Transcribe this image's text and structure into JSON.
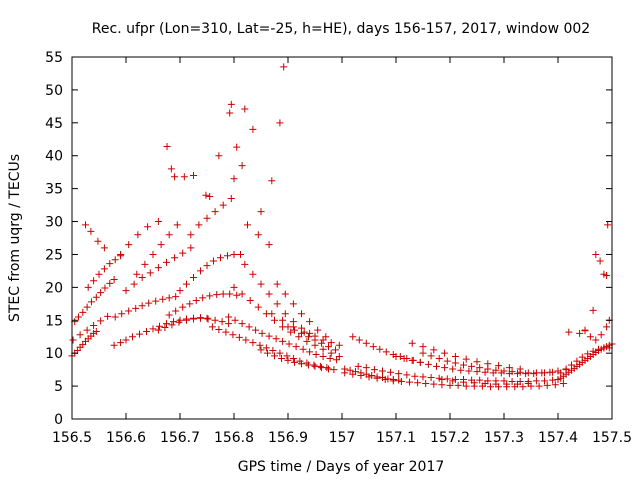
{
  "chart_data": {
    "type": "scatter",
    "title": "Rec. ufpr (Lon=310, Lat=-25, h=HE), days 156-157, 2017, window 002",
    "xlabel": "GPS time / Days of year 2017",
    "ylabel": "STEC from uqrg / TECUs",
    "xlim": [
      156.5,
      157.5
    ],
    "ylim": [
      0,
      55
    ],
    "xticks": [
      156.5,
      156.6,
      156.7,
      156.8,
      156.9,
      157,
      157.1,
      157.2,
      157.3,
      157.4,
      157.5
    ],
    "xtick_labels": [
      "156.5",
      "156.6",
      "156.7",
      "156.8",
      "156.9",
      "157",
      "157.1",
      "157.2",
      "157.3",
      "157.4",
      "157.5"
    ],
    "yticks": [
      0,
      5,
      10,
      15,
      20,
      25,
      30,
      35,
      40,
      45,
      50,
      55
    ],
    "ytick_labels": [
      "0",
      "5",
      "10",
      "15",
      "20",
      "25",
      "30",
      "35",
      "40",
      "45",
      "50",
      "55"
    ],
    "grid": false,
    "marker": "plus",
    "color": "#cc0000",
    "series": [
      {
        "x": [
          156.5,
          156.505,
          156.51,
          156.515,
          156.52,
          156.525,
          156.53,
          156.535,
          156.54,
          156.545,
          156.505,
          156.512,
          156.52,
          156.528,
          156.536,
          156.545,
          156.553,
          156.561,
          156.57,
          156.578,
          156.53,
          156.54,
          156.55,
          156.56,
          156.57,
          156.58,
          156.59,
          156.502,
          156.515,
          156.528,
          156.54,
          156.553,
          156.566,
          156.525,
          156.535,
          156.548,
          156.56,
          156.578,
          156.59,
          156.6,
          156.612,
          156.625,
          156.638,
          156.65,
          156.662,
          156.675,
          156.688,
          156.7,
          156.712,
          156.725,
          156.738,
          156.75,
          156.58,
          156.592,
          156.605,
          156.618,
          156.63,
          156.642,
          156.655,
          156.668,
          156.68,
          156.692,
          156.6,
          156.615,
          156.63,
          156.645,
          156.66,
          156.675,
          156.69,
          156.705,
          156.72,
          156.59,
          156.605,
          156.622,
          156.64,
          156.66,
          156.62,
          156.635,
          156.65,
          156.665,
          156.68,
          156.695,
          156.66,
          156.672,
          156.685,
          156.698,
          156.712,
          156.725,
          156.738,
          156.752,
          156.765,
          156.778,
          156.79,
          156.68,
          156.692,
          156.705,
          156.718,
          156.73,
          156.742,
          156.755,
          156.768,
          156.78,
          156.792,
          156.805,
          156.7,
          156.712,
          156.725,
          156.738,
          156.75,
          156.762,
          156.775,
          156.788,
          156.8,
          156.812,
          156.72,
          156.735,
          156.75,
          156.765,
          156.78,
          156.795,
          156.676,
          156.684,
          156.69,
          156.708,
          156.725,
          156.748,
          156.755,
          156.772,
          156.792,
          156.795,
          156.8,
          156.805,
          156.815,
          156.82,
          156.825,
          156.835,
          156.845,
          156.85,
          156.865,
          156.87,
          156.885,
          156.892,
          156.76,
          156.772,
          156.785,
          156.798,
          156.81,
          156.822,
          156.835,
          156.848,
          156.86,
          156.872,
          156.885,
          156.898,
          156.91,
          156.922,
          156.935,
          156.948,
          156.96,
          156.972,
          156.985,
          156.79,
          156.802,
          156.815,
          156.828,
          156.84,
          156.852,
          156.865,
          156.878,
          156.89,
          156.902,
          156.915,
          156.928,
          156.94,
          156.952,
          156.965,
          156.978,
          156.99,
          156.8,
          156.815,
          156.83,
          156.845,
          156.86,
          156.875,
          156.89,
          156.905,
          156.92,
          156.935,
          156.95,
          156.965,
          156.98,
          156.995,
          156.82,
          156.835,
          156.85,
          156.865,
          156.88,
          156.895,
          156.91,
          156.925,
          156.94,
          156.85,
          156.862,
          156.875,
          156.888,
          156.9,
          156.912,
          156.925,
          156.938,
          156.95,
          156.962,
          156.975,
          156.88,
          156.895,
          156.91,
          156.925,
          156.94,
          156.955,
          156.97,
          156.9,
          156.912,
          156.925,
          156.938,
          156.95,
          156.962,
          156.975,
          156.988,
          156.87,
          156.89,
          156.91,
          156.93,
          156.95,
          156.965,
          156.98,
          156.995,
          157.005,
          157.015,
          157.025,
          157.035,
          157.045,
          157.055,
          157.065,
          157.075,
          157.085,
          157.095,
          157.105,
          157.02,
          157.032,
          157.045,
          157.058,
          157.07,
          157.082,
          157.095,
          157.108,
          157.12,
          157.132,
          157.145,
          157.005,
          157.02,
          157.035,
          157.05,
          157.065,
          157.08,
          157.095,
          157.11,
          157.125,
          157.14,
          157.155,
          157.17,
          157.185,
          157.2,
          157.215,
          157.23,
          157.245,
          157.26,
          157.275,
          157.29,
          157.305,
          157.32,
          157.335,
          157.35,
          157.365,
          157.38,
          157.395,
          157.41,
          157.03,
          157.045,
          157.06,
          157.075,
          157.09,
          157.105,
          157.12,
          157.135,
          157.15,
          157.165,
          157.18,
          157.195,
          157.21,
          157.225,
          157.24,
          157.255,
          157.27,
          157.285,
          157.3,
          157.315,
          157.33,
          157.345,
          157.36,
          157.375,
          157.39,
          157.1,
          157.115,
          157.13,
          157.145,
          157.16,
          157.175,
          157.19,
          157.205,
          157.22,
          157.235,
          157.25,
          157.265,
          157.28,
          157.295,
          157.31,
          157.325,
          157.34,
          157.355,
          157.37,
          157.385,
          157.4,
          157.415,
          157.15,
          157.165,
          157.18,
          157.195,
          157.21,
          157.225,
          157.24,
          157.255,
          157.27,
          157.285,
          157.3,
          157.315,
          157.33,
          157.345,
          157.36,
          157.375,
          157.39,
          157.13,
          157.15,
          157.17,
          157.19,
          157.21,
          157.23,
          157.25,
          157.27,
          157.29,
          157.31,
          157.33,
          157.185,
          157.205,
          157.225,
          157.245,
          157.265,
          157.285,
          157.305,
          157.325,
          157.345,
          157.4,
          157.405,
          157.41,
          157.415,
          157.42,
          157.425,
          157.43,
          157.435,
          157.44,
          157.445,
          157.45,
          157.455,
          157.46,
          157.465,
          157.47,
          157.475,
          157.48,
          157.485,
          157.49,
          157.495,
          157.5,
          157.405,
          157.415,
          157.425,
          157.435,
          157.445,
          157.455,
          157.465,
          157.475,
          157.485,
          157.495,
          157.44,
          157.45,
          157.46,
          157.47,
          157.48,
          157.49,
          157.42,
          157.45,
          157.465,
          157.47,
          157.478,
          157.485,
          157.49,
          157.492,
          157.495
        ],
        "y": [
          9.6,
          10.0,
          10.4,
          10.9,
          11.3,
          11.8,
          12.2,
          12.6,
          13.0,
          13.3,
          14.8,
          15.5,
          16.2,
          17.0,
          17.8,
          18.5,
          19.2,
          19.9,
          20.6,
          21.2,
          20.0,
          21.0,
          22.0,
          22.8,
          23.6,
          24.2,
          24.8,
          12.0,
          12.8,
          13.5,
          14.2,
          14.9,
          15.6,
          29.5,
          28.5,
          27.0,
          26.0,
          11.2,
          11.6,
          12.0,
          12.5,
          12.9,
          13.3,
          13.7,
          14.1,
          14.5,
          14.8,
          15.0,
          15.2,
          15.3,
          15.4,
          15.3,
          15.5,
          16.0,
          16.4,
          16.8,
          17.2,
          17.6,
          17.9,
          18.2,
          18.4,
          18.6,
          19.5,
          20.5,
          21.5,
          22.2,
          23.0,
          23.8,
          24.5,
          25.2,
          26.0,
          25.0,
          26.5,
          28.0,
          29.2,
          30.0,
          22.0,
          23.5,
          25.0,
          26.5,
          28.0,
          29.5,
          13.5,
          13.9,
          14.3,
          14.7,
          15.0,
          15.2,
          15.3,
          15.2,
          15.0,
          14.8,
          14.5,
          15.8,
          16.4,
          17.0,
          17.5,
          18.0,
          18.4,
          18.7,
          18.9,
          19.0,
          19.0,
          18.8,
          19.5,
          20.5,
          21.5,
          22.5,
          23.3,
          24.0,
          24.5,
          24.8,
          25.0,
          25.0,
          28.0,
          29.5,
          30.5,
          31.5,
          32.5,
          33.5,
          41.4,
          38.0,
          36.8,
          36.8,
          37.0,
          34.0,
          33.8,
          40.0,
          46.5,
          47.8,
          36.5,
          41.3,
          38.5,
          47.1,
          29.5,
          44.0,
          28.0,
          31.5,
          26.5,
          36.2,
          45.0,
          53.5,
          14.0,
          13.6,
          13.2,
          12.8,
          12.4,
          12.0,
          11.6,
          11.2,
          10.8,
          10.4,
          10.0,
          9.6,
          9.2,
          8.8,
          8.5,
          8.2,
          8.0,
          7.8,
          7.5,
          15.5,
          15.0,
          14.5,
          14.0,
          13.5,
          13.0,
          12.6,
          12.2,
          11.8,
          11.4,
          11.0,
          10.6,
          10.2,
          9.8,
          9.5,
          9.2,
          9.0,
          20.0,
          19.0,
          18.0,
          17.0,
          16.0,
          15.0,
          14.0,
          13.2,
          12.5,
          11.8,
          11.2,
          10.6,
          10.0,
          9.5,
          23.5,
          22.0,
          20.5,
          19.0,
          17.5,
          16.0,
          14.8,
          13.8,
          13.0,
          10.5,
          10.0,
          9.6,
          9.2,
          8.9,
          8.6,
          8.4,
          8.2,
          8.0,
          7.8,
          7.6,
          20.5,
          19.0,
          17.5,
          16.0,
          14.8,
          13.5,
          12.5,
          14.0,
          13.5,
          13.0,
          12.5,
          12.0,
          11.5,
          11.0,
          10.5,
          16.0,
          15.0,
          14.0,
          13.2,
          12.6,
          12.0,
          11.6,
          11.2,
          7.6,
          7.4,
          7.2,
          7.0,
          6.8,
          6.6,
          6.4,
          6.3,
          6.1,
          6.0,
          5.9,
          12.5,
          12.0,
          11.5,
          11.0,
          10.6,
          10.2,
          9.8,
          9.5,
          9.2,
          8.9,
          8.6,
          7.0,
          6.8,
          6.6,
          6.4,
          6.2,
          6.0,
          5.8,
          5.7,
          5.6,
          5.5,
          5.4,
          5.3,
          5.2,
          5.1,
          5.1,
          5.0,
          5.0,
          5.0,
          4.9,
          4.9,
          4.9,
          4.9,
          4.9,
          5.0,
          5.0,
          5.1,
          5.2,
          5.4,
          8.0,
          7.8,
          7.5,
          7.3,
          7.1,
          6.9,
          6.7,
          6.5,
          6.4,
          6.3,
          6.2,
          6.1,
          6.0,
          6.0,
          5.9,
          5.9,
          5.8,
          5.8,
          5.8,
          5.7,
          5.7,
          5.7,
          5.8,
          5.8,
          5.9,
          9.5,
          9.2,
          8.9,
          8.6,
          8.3,
          8.0,
          7.8,
          7.6,
          7.4,
          7.3,
          7.2,
          7.1,
          7.0,
          7.0,
          6.9,
          6.9,
          6.9,
          6.9,
          7.0,
          7.1,
          7.3,
          7.5,
          10.0,
          9.6,
          9.2,
          8.8,
          8.5,
          8.2,
          8.0,
          7.8,
          7.6,
          7.4,
          7.3,
          7.2,
          7.1,
          7.0,
          7.0,
          7.0,
          7.1,
          11.5,
          11.0,
          10.5,
          10.0,
          9.5,
          9.1,
          8.7,
          8.4,
          8.1,
          7.8,
          7.6,
          6.0,
          5.8,
          5.6,
          5.5,
          5.4,
          5.3,
          5.3,
          5.3,
          5.4,
          6.0,
          6.2,
          6.5,
          6.8,
          7.1,
          7.4,
          7.7,
          8.0,
          8.3,
          8.6,
          8.9,
          9.2,
          9.5,
          9.8,
          10.1,
          10.4,
          10.6,
          10.8,
          11.0,
          11.2,
          11.4,
          7.0,
          7.6,
          8.2,
          8.8,
          9.4,
          9.9,
          10.3,
          10.6,
          10.8,
          10.8,
          13.0,
          13.5,
          12.5,
          12.0,
          12.8,
          14.0,
          13.2,
          13.4,
          16.5,
          25.0,
          24.0,
          22.0,
          21.8,
          29.5,
          15.0
        ]
      }
    ]
  }
}
